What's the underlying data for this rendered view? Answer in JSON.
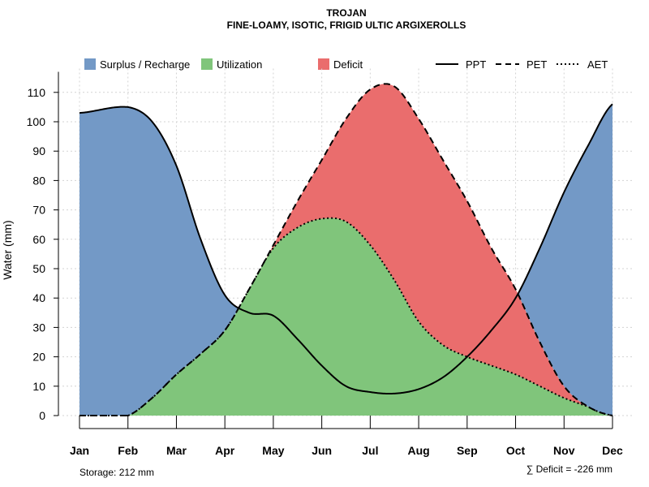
{
  "chart_data": {
    "type": "area",
    "title": "TROJAN",
    "subtitle": "FINE-LOAMY, ISOTIC, FRIGID ULTIC ARGIXEROLLS",
    "xlabel": "",
    "ylabel": "Water (mm)",
    "ylim": [
      0,
      117
    ],
    "yticks": [
      0,
      10,
      20,
      30,
      40,
      50,
      60,
      70,
      80,
      90,
      100,
      110
    ],
    "categories": [
      "Jan",
      "Feb",
      "Mar",
      "Apr",
      "May",
      "Jun",
      "Jul",
      "Aug",
      "Sep",
      "Oct",
      "Nov",
      "Dec"
    ],
    "grid": true,
    "legend_position": "top",
    "series": [
      {
        "name": "PPT",
        "line_style": "solid",
        "x": [
          1,
          2,
          2.5,
          3,
          3.5,
          4,
          4.5,
          5,
          5.5,
          6,
          6.5,
          7,
          7.5,
          8,
          8.5,
          9,
          9.5,
          10,
          10.5,
          11,
          11.5,
          12
        ],
        "values": [
          103,
          105,
          100,
          85,
          60,
          41,
          35,
          34,
          26,
          17,
          10,
          8,
          7.5,
          9,
          13,
          20,
          29,
          40,
          57,
          76,
          92,
          106
        ]
      },
      {
        "name": "PET",
        "line_style": "dashed",
        "x": [
          1,
          2,
          2.5,
          3,
          3.5,
          4,
          4.5,
          5,
          5.5,
          6,
          6.5,
          7,
          7.5,
          8,
          8.5,
          9,
          9.5,
          10,
          10.5,
          11,
          11.5,
          12
        ],
        "values": [
          0,
          0,
          6,
          14,
          21,
          29,
          43,
          58,
          73,
          87,
          101,
          111,
          112,
          101,
          87,
          73,
          57,
          43,
          25,
          10,
          3,
          0
        ]
      },
      {
        "name": "AET",
        "line_style": "dotted",
        "x": [
          1,
          2,
          2.5,
          3,
          3.5,
          4,
          4.5,
          5,
          5.5,
          6,
          6.5,
          7,
          7.5,
          8,
          8.5,
          9,
          9.5,
          10,
          10.5,
          11,
          11.5,
          12
        ],
        "values": [
          0,
          0,
          6,
          14,
          21,
          29,
          43,
          57,
          64,
          67,
          66,
          58,
          46,
          32,
          24,
          20,
          17,
          14,
          10,
          6,
          3,
          0
        ]
      }
    ],
    "regions": [
      {
        "name": "Surplus / Recharge",
        "color": "#7399C6"
      },
      {
        "name": "Utilization",
        "color": "#80C57B"
      },
      {
        "name": "Deficit",
        "color": "#EA6D6D"
      }
    ],
    "legend_lines": [
      "PPT",
      "PET",
      "AET"
    ],
    "storage_note": "Storage: 212 mm",
    "deficit_note": "∑ Deficit = -226 mm"
  }
}
